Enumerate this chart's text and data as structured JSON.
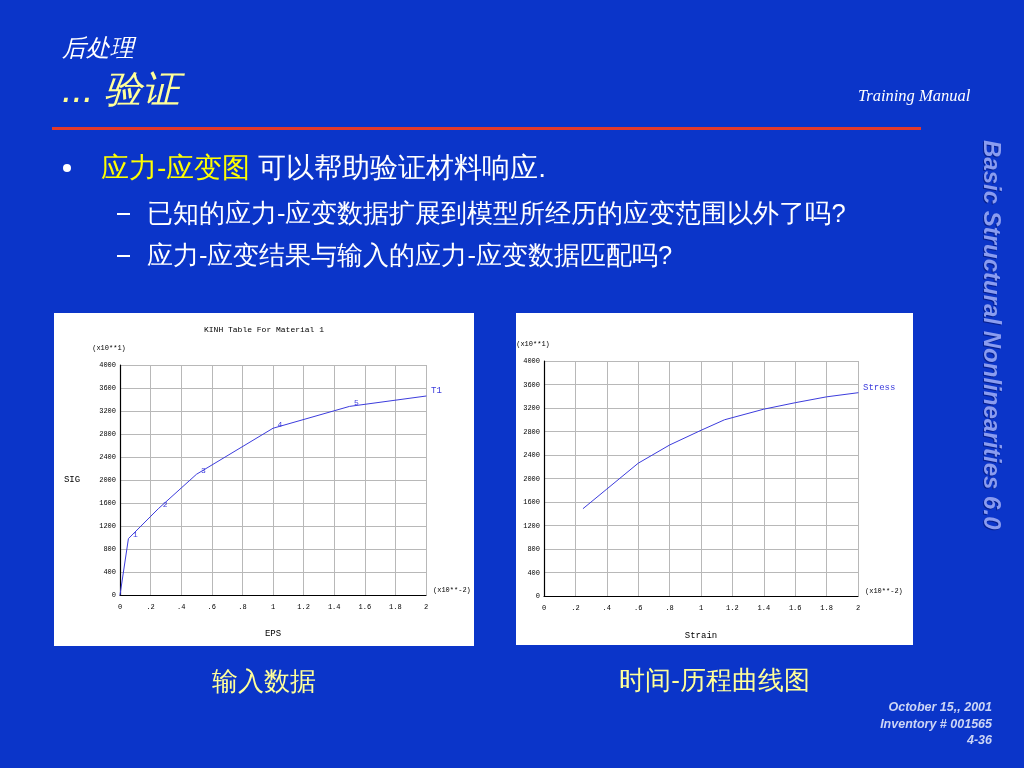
{
  "chart_data": [
    {
      "type": "other",
      "title": "后处理",
      "subtitle": "... 验证",
      "annotations": [
        "应力-应变图",
        "可以帮助验证材料响应.",
        "已知的应力-应变数据扩展到模型所经历的应变范围以外了吗?",
        "应力-应变结果与输入的应力-应变数据匹配吗?",
        "Training Manual",
        "Basic Structural Nonlinearities 6.0",
        "October 15,, 2001",
        "Inventory # 001565",
        "4-36"
      ]
    },
    {
      "type": "line",
      "title": "KINH Table For Material 1",
      "xlabel": "EPS",
      "ylabel": "SIG",
      "series": [
        {
          "name": "T1",
          "color": "#3c3cdc",
          "x": [
            0,
            0.055,
            0.25,
            0.5,
            1.0,
            1.5,
            2.0
          ],
          "values": [
            0,
            980,
            1500,
            2100,
            2900,
            3280,
            3460
          ]
        }
      ],
      "xlim": [
        0,
        2
      ],
      "xticks": [
        0,
        {
          "value": 0.2,
          "label": ".2"
        },
        {
          "value": 0.4,
          "label": ".4"
        },
        {
          "value": 0.6,
          "label": ".6"
        },
        {
          "value": 0.8,
          "label": ".8"
        },
        1,
        1.2,
        1.4,
        1.6,
        1.8,
        2
      ],
      "ylim": [
        0,
        4000
      ],
      "yticks": [
        0,
        400,
        800,
        1200,
        1600,
        2000,
        2400,
        2800,
        3200,
        3600,
        4000
      ],
      "grid": true,
      "marker": "none",
      "annotations": [
        "(x10**1)",
        "(x10**-2)",
        {
          "text": "1",
          "x": 0.055,
          "y": 980
        },
        {
          "text": "2",
          "x": 0.25,
          "y": 1500
        },
        {
          "text": "3",
          "x": 0.5,
          "y": 2100
        },
        {
          "text": "4",
          "x": 1.0,
          "y": 2900
        },
        {
          "text": "5",
          "x": 1.5,
          "y": 3280
        },
        "输入数据"
      ]
    },
    {
      "type": "line",
      "xlabel": "Strain",
      "series": [
        {
          "name": "Stress",
          "color": "#3c3cdc",
          "x": [
            0.25,
            0.4,
            0.6,
            0.8,
            1.0,
            1.15,
            1.4,
            1.6,
            1.8,
            2.0
          ],
          "values": [
            1490,
            1820,
            2260,
            2570,
            2820,
            3000,
            3180,
            3290,
            3390,
            3460
          ]
        }
      ],
      "xlim": [
        0,
        2
      ],
      "xticks": [
        0,
        {
          "value": 0.2,
          "label": ".2"
        },
        {
          "value": 0.4,
          "label": ".4"
        },
        {
          "value": 0.6,
          "label": ".6"
        },
        {
          "value": 0.8,
          "label": ".8"
        },
        1,
        1.2,
        1.4,
        1.6,
        1.8,
        2
      ],
      "ylim": [
        0,
        4000
      ],
      "yticks": [
        0,
        400,
        800,
        1200,
        1600,
        2000,
        2400,
        2800,
        3200,
        3600,
        4000
      ],
      "grid": true,
      "marker": "none",
      "annotations": [
        "(x10**1)",
        "(x10**-2)",
        "时间-历程曲线图"
      ]
    }
  ]
}
